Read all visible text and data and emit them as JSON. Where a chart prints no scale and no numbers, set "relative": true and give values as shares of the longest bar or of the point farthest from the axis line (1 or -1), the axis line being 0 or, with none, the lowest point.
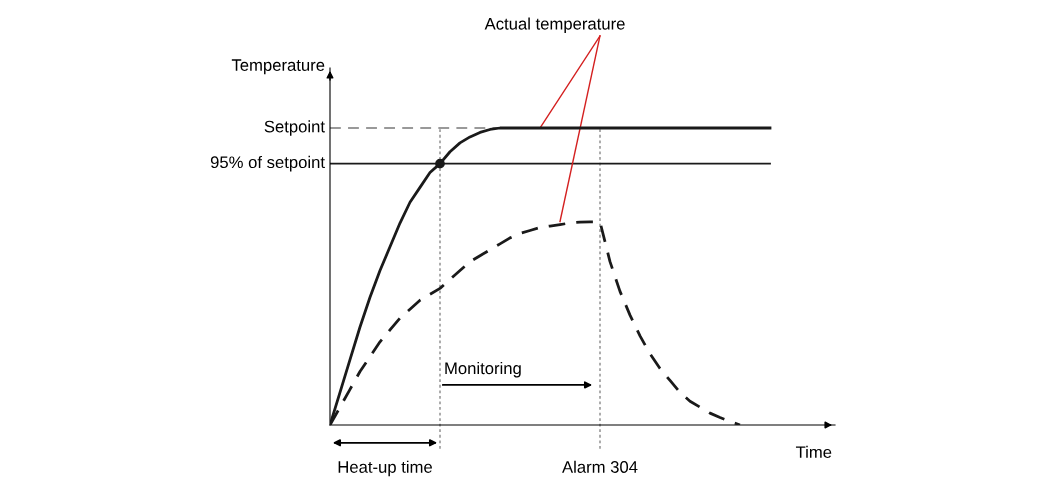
{
  "chart_data": {
    "type": "line",
    "relative": true,
    "xlabel": "Time",
    "ylabel": "Temperature",
    "categories": [
      null,
      null,
      null,
      null,
      null,
      null,
      null,
      null,
      null,
      null,
      null,
      null,
      null,
      null,
      null,
      null,
      null,
      null,
      null,
      null,
      null,
      null,
      null,
      null,
      null,
      null,
      null,
      null,
      null,
      null,
      null,
      null,
      null,
      null,
      null,
      null,
      null,
      null,
      null,
      null,
      null,
      null,
      null,
      null,
      null
    ],
    "series": [
      {
        "color": "#1a1a1a",
        "line_style": "solid",
        "marker": "none",
        "values": [
          0,
          0.11,
          0.22,
          0.33,
          0.43,
          0.52,
          0.6,
          0.68,
          0.75,
          0.8,
          0.85,
          0.88,
          0.92,
          0.95,
          0.97,
          0.985,
          0.995,
          1,
          1,
          1,
          1,
          1,
          1,
          1,
          1,
          1,
          1,
          1,
          1,
          1,
          1,
          1,
          1,
          1,
          1,
          1,
          1,
          1,
          1,
          1,
          1,
          1,
          1,
          1,
          1
        ]
      },
      {
        "color": "#1a1a1a",
        "line_style": "dashed",
        "marker": "none",
        "values": [
          0,
          0.06,
          0.12,
          0.18,
          0.23,
          0.28,
          0.32,
          0.36,
          0.39,
          0.42,
          0.44,
          0.46,
          0.49,
          0.52,
          0.55,
          0.57,
          0.59,
          0.61,
          0.63,
          0.645,
          0.655,
          0.665,
          0.67,
          0.675,
          0.68,
          0.683,
          0.684,
          0.684,
          0.55,
          0.45,
          0.37,
          0.3,
          0.24,
          0.19,
          0.15,
          0.11,
          0.08,
          0.06,
          0.04,
          0.025,
          0.012,
          0,
          null,
          null,
          null
        ]
      }
    ],
    "ref_lines": [
      {
        "axis": "y",
        "value": 1,
        "label": "Setpoint",
        "color": "#999999",
        "line_style": "dashed"
      },
      {
        "axis": "y",
        "value": 0.88,
        "label": "95% of setpoint",
        "color": "#1a1a1a",
        "line_style": "solid"
      }
    ],
    "annotations": [
      "Actual temperature",
      "Monitoring",
      "Heat-up time",
      "Alarm 304"
    ],
    "grid": false
  }
}
